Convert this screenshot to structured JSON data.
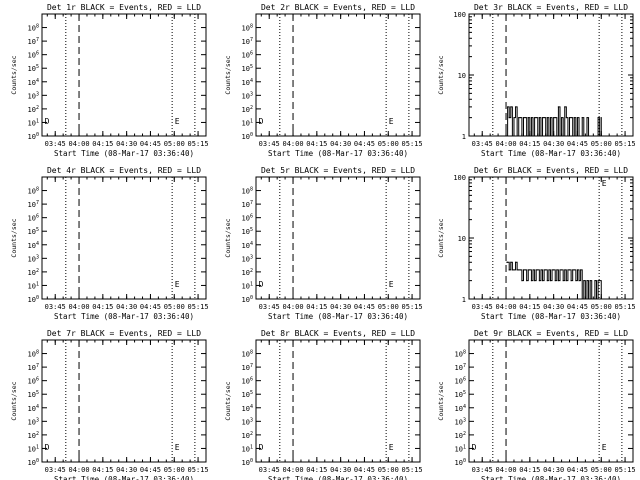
{
  "panels": [
    {
      "title": "Det 1r BLACK = Events, RED = LLD",
      "scale": "nine",
      "ylabel": "Counts/sec",
      "xlabel": "Start Time (08-Mar-17 03:36:40)",
      "markers": [
        "D",
        "E"
      ],
      "series": []
    },
    {
      "title": "Det 2r BLACK = Events, RED = LLD",
      "scale": "nine",
      "ylabel": "Counts/sec",
      "xlabel": "Start Time (08-Mar-17 03:36:40)",
      "markers": [
        "D",
        "E"
      ],
      "series": []
    },
    {
      "title": "Det 3r BLACK = Events, RED = LLD",
      "scale": "hundred",
      "ylabel": "Counts/sec",
      "xlabel": "Start Time (08-Mar-17 03:36:40)",
      "markers": [
        "",
        ""
      ],
      "series": [
        {
          "name": "",
          "color": "#000000",
          "points": [
            [
              "04:00:30",
              1
            ],
            [
              "04:01",
              3
            ],
            [
              "04:02",
              2
            ],
            [
              "04:03",
              3
            ],
            [
              "04:04",
              1
            ],
            [
              "04:05",
              2
            ],
            [
              "04:06",
              3
            ],
            [
              "04:07",
              1
            ],
            [
              "04:08",
              2
            ],
            [
              "04:09",
              2
            ],
            [
              "04:10",
              1
            ],
            [
              "04:11",
              2
            ],
            [
              "04:12",
              2
            ],
            [
              "04:13",
              1
            ],
            [
              "04:14",
              2
            ],
            [
              "04:15",
              1
            ],
            [
              "04:16",
              2
            ],
            [
              "04:17",
              1
            ],
            [
              "04:18",
              2
            ],
            [
              "04:19",
              2
            ],
            [
              "04:20",
              1
            ],
            [
              "04:21",
              2
            ],
            [
              "04:22",
              1
            ],
            [
              "04:23",
              2
            ],
            [
              "04:24",
              2
            ],
            [
              "04:25",
              1
            ],
            [
              "04:26",
              2
            ],
            [
              "04:27",
              1
            ],
            [
              "04:28",
              2
            ],
            [
              "04:29",
              1
            ],
            [
              "04:30",
              2
            ],
            [
              "04:31",
              2
            ],
            [
              "04:32",
              1
            ],
            [
              "04:33",
              3
            ],
            [
              "04:34",
              1
            ],
            [
              "04:35",
              2
            ],
            [
              "04:36",
              1
            ],
            [
              "04:37",
              3
            ],
            [
              "04:38",
              2
            ],
            [
              "04:39",
              1
            ],
            [
              "04:40",
              2
            ],
            [
              "04:41",
              2
            ],
            [
              "04:42",
              1
            ],
            [
              "04:43",
              2
            ],
            [
              "04:44",
              1
            ],
            [
              "04:45",
              2
            ],
            [
              "04:46",
              1
            ],
            [
              "04:47",
              1
            ],
            [
              "04:48",
              2
            ],
            [
              "04:49",
              1
            ],
            [
              "04:50",
              1
            ],
            [
              "04:51",
              2
            ],
            [
              "04:52",
              1
            ],
            [
              "04:53",
              1
            ],
            [
              "04:54",
              1
            ],
            [
              "04:55",
              1
            ],
            [
              "04:56",
              1
            ],
            [
              "04:57",
              1
            ],
            [
              "04:58",
              2
            ],
            [
              "04:59",
              1
            ],
            [
              "05:00",
              2
            ]
          ]
        }
      ]
    },
    {
      "title": "Det 4r BLACK = Events, RED = LLD",
      "scale": "nine",
      "ylabel": "Counts/sec",
      "xlabel": "Start Time (08-Mar-17 03:36:40)",
      "markers": [
        "",
        "E"
      ],
      "series": []
    },
    {
      "title": "Det 5r BLACK = Events, RED = LLD",
      "scale": "nine",
      "ylabel": "Counts/sec",
      "xlabel": "Start Time (08-Mar-17 03:36:40)",
      "markers": [
        "D",
        "E"
      ],
      "series": []
    },
    {
      "title": "Det 6r BLACK = Events, RED = LLD",
      "scale": "hundred",
      "ylabel": "Counts/sec",
      "xlabel": "Start Time (08-Mar-17 03:36:40)",
      "markers": [
        "",
        "E"
      ],
      "series": [
        {
          "name": "",
          "color": "#000000",
          "points": [
            [
              "04:00:30",
              4
            ],
            [
              "04:01",
              4
            ],
            [
              "04:02",
              3
            ],
            [
              "04:03",
              4
            ],
            [
              "04:04",
              3
            ],
            [
              "04:05",
              3
            ],
            [
              "04:06",
              4
            ],
            [
              "04:07",
              3
            ],
            [
              "04:08",
              3
            ],
            [
              "04:09",
              3
            ],
            [
              "04:10",
              2
            ],
            [
              "04:11",
              3
            ],
            [
              "04:12",
              3
            ],
            [
              "04:13",
              2
            ],
            [
              "04:14",
              3
            ],
            [
              "04:15",
              3
            ],
            [
              "04:16",
              2
            ],
            [
              "04:17",
              3
            ],
            [
              "04:18",
              2
            ],
            [
              "04:19",
              3
            ],
            [
              "04:20",
              3
            ],
            [
              "04:21",
              2
            ],
            [
              "04:22",
              3
            ],
            [
              "04:23",
              2
            ],
            [
              "04:24",
              3
            ],
            [
              "04:25",
              3
            ],
            [
              "04:26",
              2
            ],
            [
              "04:27",
              3
            ],
            [
              "04:28",
              2
            ],
            [
              "04:29",
              3
            ],
            [
              "04:30",
              3
            ],
            [
              "04:31",
              2
            ],
            [
              "04:32",
              3
            ],
            [
              "04:33",
              2
            ],
            [
              "04:34",
              3
            ],
            [
              "04:35",
              3
            ],
            [
              "04:36",
              2
            ],
            [
              "04:37",
              3
            ],
            [
              "04:38",
              2
            ],
            [
              "04:39",
              3
            ],
            [
              "04:40",
              3
            ],
            [
              "04:41",
              2
            ],
            [
              "04:42",
              3
            ],
            [
              "04:43",
              3
            ],
            [
              "04:44",
              2
            ],
            [
              "04:45",
              3
            ],
            [
              "04:46",
              2
            ],
            [
              "04:47",
              3
            ],
            [
              "04:48",
              1
            ],
            [
              "04:49",
              2
            ],
            [
              "04:50",
              1
            ],
            [
              "04:51",
              2
            ],
            [
              "04:52",
              1
            ],
            [
              "04:53",
              2
            ],
            [
              "04:54",
              1
            ],
            [
              "04:55",
              1
            ],
            [
              "04:56",
              2
            ],
            [
              "04:57",
              1
            ],
            [
              "04:58",
              2
            ],
            [
              "04:59",
              2
            ],
            [
              "05:00",
              1
            ]
          ]
        }
      ]
    },
    {
      "title": "Det 7r BLACK = Events, RED = LLD",
      "scale": "nine",
      "ylabel": "Counts/sec",
      "xlabel": "Start Time (08-Mar-17 03:36:40)",
      "markers": [
        "D",
        "E"
      ],
      "series": []
    },
    {
      "title": "Det 8r BLACK = Events, RED = LLD",
      "scale": "nine",
      "ylabel": "Counts/sec",
      "xlabel": "Start Time (08-Mar-17 03:36:40)",
      "markers": [
        "D",
        "E"
      ],
      "series": []
    },
    {
      "title": "Det 9r BLACK = Events, RED = LLD",
      "scale": "nine",
      "ylabel": "Counts/sec",
      "xlabel": "Start Time (08-Mar-17 03:36:40)",
      "markers": [
        "D",
        "E"
      ],
      "series": []
    }
  ],
  "axes": {
    "nine": {
      "ticks": [
        {
          "sup": "0",
          "exp": 0
        },
        {
          "sup": "1",
          "exp": 1
        },
        {
          "sup": "2",
          "exp": 2
        },
        {
          "sup": "3",
          "exp": 3
        },
        {
          "sup": "4",
          "exp": 4
        },
        {
          "sup": "5",
          "exp": 5
        },
        {
          "sup": "6",
          "exp": 6
        },
        {
          "sup": "7",
          "exp": 7
        },
        {
          "sup": "8",
          "exp": 8
        }
      ]
    },
    "hundred": {
      "ticks": [
        {
          "label": "1",
          "value": 1
        },
        {
          "label": "10",
          "value": 10
        },
        {
          "label": "100",
          "value": 100
        }
      ]
    }
  },
  "x_ticks": [
    "03:45",
    "04:00",
    "04:15",
    "04:30",
    "04:45",
    "05:00",
    "05:15"
  ],
  "x_range": [
    "03:36:40",
    "05:20:00"
  ],
  "dotted_lines": [
    "03:51:40",
    "04:58:40",
    "05:13:00"
  ],
  "dashed_lines": [
    "04:00:00"
  ],
  "chart_data": [
    {
      "type": "line",
      "title": "Det 1r BLACK = Events, RED = LLD",
      "xlabel": "Start Time (08-Mar-17 03:36:40)",
      "ylabel": "Counts/sec",
      "ylim": [
        1,
        1000000000.0
      ],
      "yscale": "log",
      "series": []
    },
    {
      "type": "line",
      "title": "Det 2r BLACK = Events, RED = LLD",
      "xlabel": "Start Time (08-Mar-17 03:36:40)",
      "ylabel": "Counts/sec",
      "ylim": [
        1,
        1000000000.0
      ],
      "yscale": "log",
      "series": []
    },
    {
      "type": "line",
      "title": "Det 3r BLACK = Events, RED = LLD",
      "xlabel": "Start Time (08-Mar-17 03:36:40)",
      "ylabel": "Counts/sec",
      "ylim": [
        1,
        100
      ],
      "yscale": "log",
      "series": [
        {
          "values": "see panels[2].series[0].points"
        }
      ]
    },
    {
      "type": "line",
      "title": "Det 4r BLACK = Events, RED = LLD",
      "xlabel": "Start Time (08-Mar-17 03:36:40)",
      "ylabel": "Counts/sec",
      "ylim": [
        1,
        1000000000.0
      ],
      "yscale": "log",
      "series": []
    },
    {
      "type": "line",
      "title": "Det 5r BLACK = Events, RED = LLD",
      "xlabel": "Start Time (08-Mar-17 03:36:40)",
      "ylabel": "Counts/sec",
      "ylim": [
        1,
        1000000000.0
      ],
      "yscale": "log",
      "series": []
    },
    {
      "type": "line",
      "title": "Det 6r BLACK = Events, RED = LLD",
      "xlabel": "Start Time (08-Mar-17 03:36:40)",
      "ylabel": "Counts/sec",
      "ylim": [
        1,
        100
      ],
      "yscale": "log",
      "series": [
        {
          "values": "see panels[5].series[0].points"
        }
      ]
    },
    {
      "type": "line",
      "title": "Det 7r BLACK = Events, RED = LLD",
      "xlabel": "Start Time (08-Mar-17 03:36:40)",
      "ylabel": "Counts/sec",
      "ylim": [
        1,
        1000000000.0
      ],
      "yscale": "log",
      "series": []
    },
    {
      "type": "line",
      "title": "Det 8r BLACK = Events, RED = LLD",
      "xlabel": "Start Time (08-Mar-17 03:36:40)",
      "ylabel": "Counts/sec",
      "ylim": [
        1,
        1000000000.0
      ],
      "yscale": "log",
      "series": []
    },
    {
      "type": "line",
      "title": "Det 9r BLACK = Events, RED = LLD",
      "xlabel": "Start Time (08-Mar-17 03:36:40)",
      "ylabel": "Counts/sec",
      "ylim": [
        1,
        1000000000.0
      ],
      "yscale": "log",
      "series": []
    }
  ]
}
